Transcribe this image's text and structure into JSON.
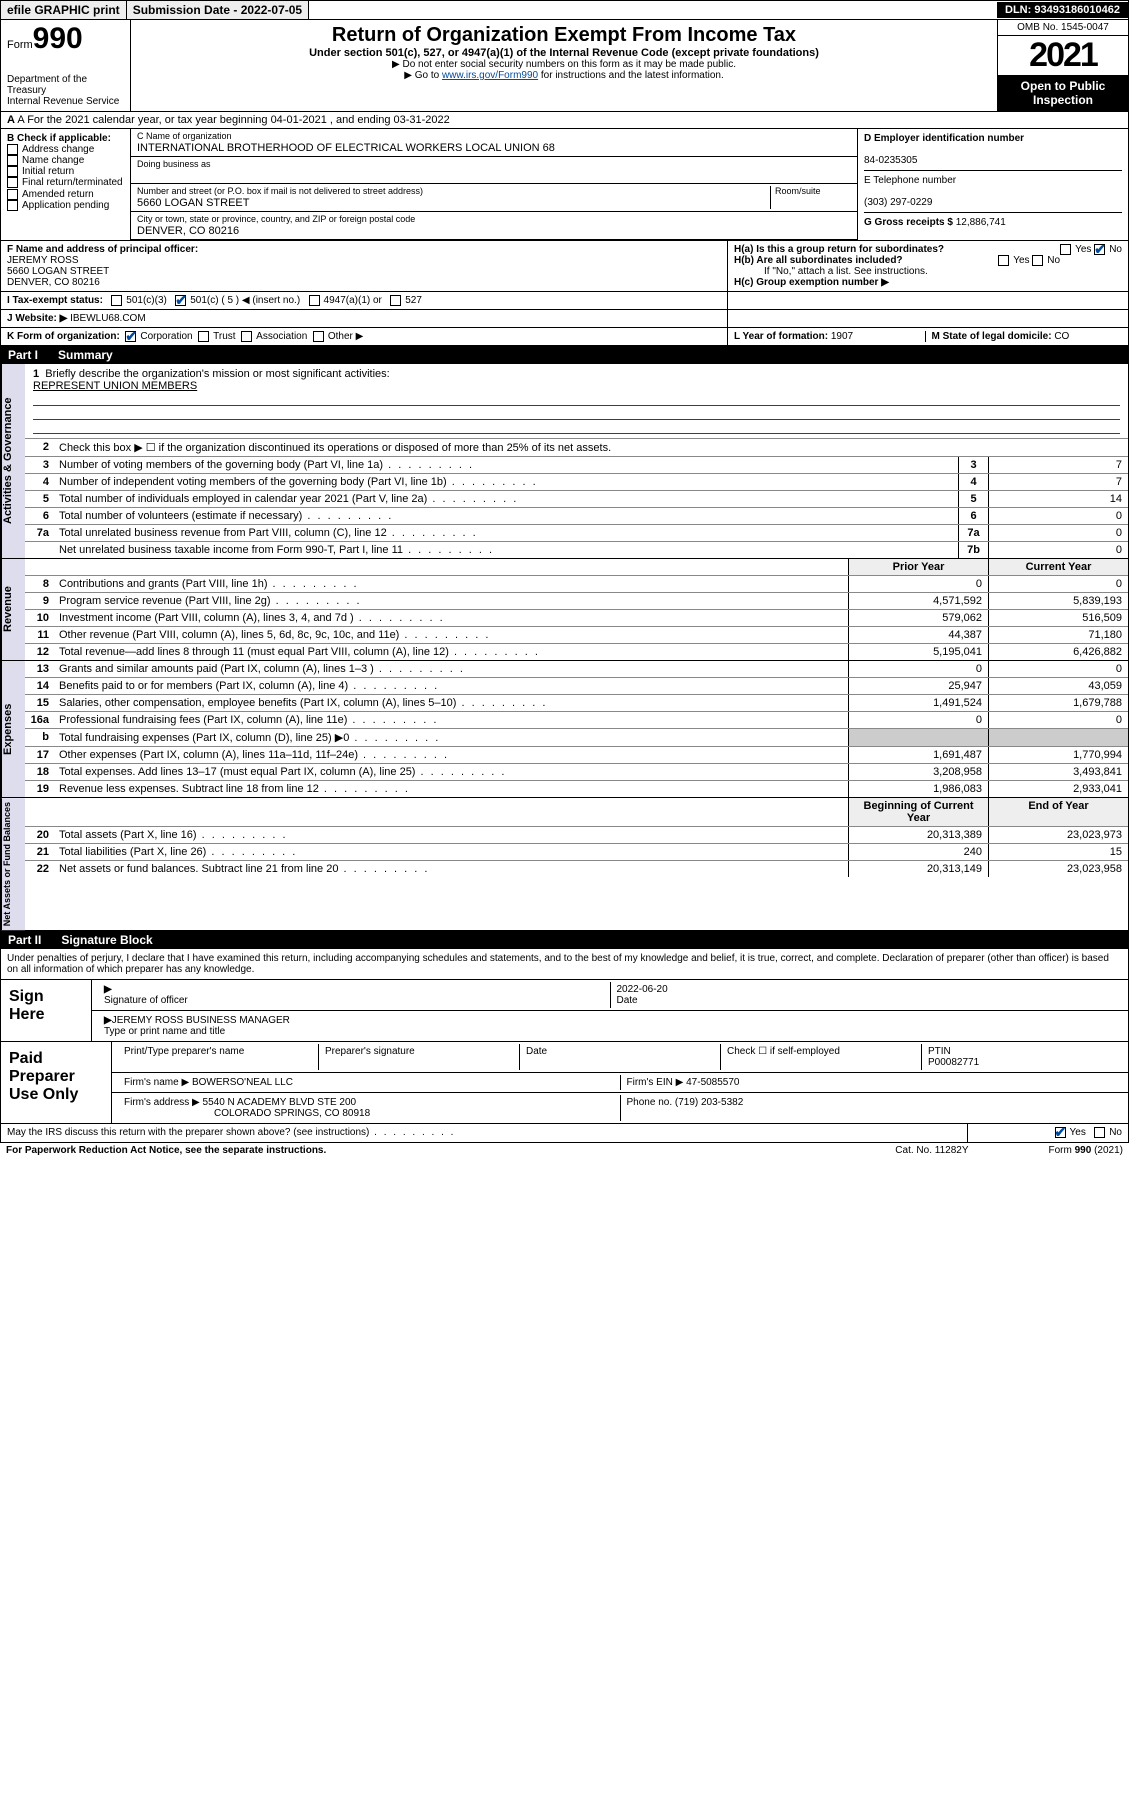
{
  "topbar": {
    "efile": "efile GRAPHIC print",
    "subdate_lbl": "Submission Date - ",
    "subdate": "2022-07-05",
    "dln_lbl": "DLN: ",
    "dln": "93493186010462"
  },
  "header": {
    "form_small": "Form",
    "form_big": "990",
    "dept": "Department of the Treasury\nInternal Revenue Service",
    "title": "Return of Organization Exempt From Income Tax",
    "sub1": "Under section 501(c), 527, or 4947(a)(1) of the Internal Revenue Code (except private foundations)",
    "sub2": "▶ Do not enter social security numbers on this form as it may be made public.",
    "sub3_pre": "▶ Go to ",
    "sub3_link": "www.irs.gov/Form990",
    "sub3_post": " for instructions and the latest information.",
    "omb": "OMB No. 1545-0047",
    "year": "2021",
    "open": "Open to Public Inspection"
  },
  "row_a": "A For the 2021 calendar year, or tax year beginning 04-01-2021   , and ending 03-31-2022",
  "col_b": {
    "hdr": "B Check if applicable:",
    "items": [
      "Address change",
      "Name change",
      "Initial return",
      "Final return/terminated",
      "Amended return",
      "Application pending"
    ]
  },
  "col_c": {
    "name_lbl": "C Name of organization",
    "name": "INTERNATIONAL BROTHERHOOD OF ELECTRICAL WORKERS LOCAL UNION 68",
    "dba_lbl": "Doing business as",
    "dba": "",
    "addr_lbl": "Number and street (or P.O. box if mail is not delivered to street address)",
    "addr": "5660 LOGAN STREET",
    "room_lbl": "Room/suite",
    "city_lbl": "City or town, state or province, country, and ZIP or foreign postal code",
    "city": "DENVER, CO  80216"
  },
  "col_de": {
    "d_lbl": "D Employer identification number",
    "d_val": "84-0235305",
    "e_lbl": "E Telephone number",
    "e_val": "(303) 297-0229",
    "g_lbl": "G Gross receipts $ ",
    "g_val": "12,886,741"
  },
  "row_f": {
    "f_lbl": "F Name and address of principal officer:",
    "f_name": "JEREMY ROSS",
    "f_addr1": "5660 LOGAN STREET",
    "f_addr2": "DENVER, CO  80216",
    "ha": "H(a)  Is this a group return for subordinates?",
    "hb": "H(b)  Are all subordinates included?",
    "hb_note": "If \"No,\" attach a list. See instructions.",
    "hc": "H(c)  Group exemption number ▶",
    "yes": "Yes",
    "no": "No"
  },
  "row_i": {
    "lbl": "I   Tax-exempt status:",
    "o1": "501(c)(3)",
    "o2": "501(c) ( 5 ) ◀ (insert no.)",
    "o3": "4947(a)(1) or",
    "o4": "527"
  },
  "row_j": {
    "lbl": "J   Website: ▶ ",
    "val": "IBEWLU68.COM"
  },
  "row_k": {
    "lbl": "K Form of organization:",
    "o1": "Corporation",
    "o2": "Trust",
    "o3": "Association",
    "o4": "Other ▶",
    "l_lbl": "L Year of formation: ",
    "l_val": "1907",
    "m_lbl": "M State of legal domicile: ",
    "m_val": "CO"
  },
  "part1": {
    "num": "Part I",
    "title": "Summary"
  },
  "gov": {
    "tab": "Activities & Governance",
    "l1": "Briefly describe the organization's mission or most significant activities:",
    "l1v": "REPRESENT UNION MEMBERS",
    "l2": "Check this box ▶ ☐  if the organization discontinued its operations or disposed of more than 25% of its net assets.",
    "rows": [
      {
        "n": "3",
        "t": "Number of voting members of the governing body (Part VI, line 1a)",
        "b": "3",
        "v": "7"
      },
      {
        "n": "4",
        "t": "Number of independent voting members of the governing body (Part VI, line 1b)",
        "b": "4",
        "v": "7"
      },
      {
        "n": "5",
        "t": "Total number of individuals employed in calendar year 2021 (Part V, line 2a)",
        "b": "5",
        "v": "14"
      },
      {
        "n": "6",
        "t": "Total number of volunteers (estimate if necessary)",
        "b": "6",
        "v": "0"
      },
      {
        "n": "7a",
        "t": "Total unrelated business revenue from Part VIII, column (C), line 12",
        "b": "7a",
        "v": "0"
      },
      {
        "n": "",
        "t": "Net unrelated business taxable income from Form 990-T, Part I, line 11",
        "b": "7b",
        "v": "0"
      }
    ]
  },
  "rev": {
    "tab": "Revenue",
    "hdr_prior": "Prior Year",
    "hdr_curr": "Current Year",
    "rows": [
      {
        "n": "8",
        "t": "Contributions and grants (Part VIII, line 1h)",
        "p": "0",
        "c": "0"
      },
      {
        "n": "9",
        "t": "Program service revenue (Part VIII, line 2g)",
        "p": "4,571,592",
        "c": "5,839,193"
      },
      {
        "n": "10",
        "t": "Investment income (Part VIII, column (A), lines 3, 4, and 7d )",
        "p": "579,062",
        "c": "516,509"
      },
      {
        "n": "11",
        "t": "Other revenue (Part VIII, column (A), lines 5, 6d, 8c, 9c, 10c, and 11e)",
        "p": "44,387",
        "c": "71,180"
      },
      {
        "n": "12",
        "t": "Total revenue—add lines 8 through 11 (must equal Part VIII, column (A), line 12)",
        "p": "5,195,041",
        "c": "6,426,882"
      }
    ]
  },
  "exp": {
    "tab": "Expenses",
    "rows": [
      {
        "n": "13",
        "t": "Grants and similar amounts paid (Part IX, column (A), lines 1–3 )",
        "p": "0",
        "c": "0"
      },
      {
        "n": "14",
        "t": "Benefits paid to or for members (Part IX, column (A), line 4)",
        "p": "25,947",
        "c": "43,059"
      },
      {
        "n": "15",
        "t": "Salaries, other compensation, employee benefits (Part IX, column (A), lines 5–10)",
        "p": "1,491,524",
        "c": "1,679,788"
      },
      {
        "n": "16a",
        "t": "Professional fundraising fees (Part IX, column (A), line 11e)",
        "p": "0",
        "c": "0"
      },
      {
        "n": "b",
        "t": "Total fundraising expenses (Part IX, column (D), line 25) ▶0",
        "p": "",
        "c": "",
        "shade": true
      },
      {
        "n": "17",
        "t": "Other expenses (Part IX, column (A), lines 11a–11d, 11f–24e)",
        "p": "1,691,487",
        "c": "1,770,994"
      },
      {
        "n": "18",
        "t": "Total expenses. Add lines 13–17 (must equal Part IX, column (A), line 25)",
        "p": "3,208,958",
        "c": "3,493,841"
      },
      {
        "n": "19",
        "t": "Revenue less expenses. Subtract line 18 from line 12",
        "p": "1,986,083",
        "c": "2,933,041"
      }
    ]
  },
  "net": {
    "tab": "Net Assets or Fund Balances",
    "hdr_beg": "Beginning of Current Year",
    "hdr_end": "End of Year",
    "rows": [
      {
        "n": "20",
        "t": "Total assets (Part X, line 16)",
        "p": "20,313,389",
        "c": "23,023,973"
      },
      {
        "n": "21",
        "t": "Total liabilities (Part X, line 26)",
        "p": "240",
        "c": "15"
      },
      {
        "n": "22",
        "t": "Net assets or fund balances. Subtract line 21 from line 20",
        "p": "20,313,149",
        "c": "23,023,958"
      }
    ]
  },
  "part2": {
    "num": "Part II",
    "title": "Signature Block"
  },
  "decl": "Under penalties of perjury, I declare that I have examined this return, including accompanying schedules and statements, and to the best of my knowledge and belief, it is true, correct, and complete. Declaration of preparer (other than officer) is based on all information of which preparer has any knowledge.",
  "sign": {
    "lbl": "Sign Here",
    "sig_lbl": "Signature of officer",
    "date": "2022-06-20",
    "date_lbl": "Date",
    "name": "JEREMY ROSS  BUSINESS MANAGER",
    "name_lbl": "Type or print name and title"
  },
  "paid": {
    "lbl": "Paid Preparer Use Only",
    "c1": "Print/Type preparer's name",
    "c2": "Preparer's signature",
    "c3": "Date",
    "c4": "Check ☐ if self-employed",
    "c5_lbl": "PTIN",
    "c5": "P00082771",
    "firm_lbl": "Firm's name    ▶ ",
    "firm": "BOWERSO'NEAL LLC",
    "ein_lbl": "Firm's EIN ▶ ",
    "ein": "47-5085570",
    "addr_lbl": "Firm's address ▶ ",
    "addr1": "5540 N ACADEMY BLVD STE 200",
    "addr2": "COLORADO SPRINGS, CO  80918",
    "ph_lbl": "Phone no. ",
    "ph": "(719) 203-5382"
  },
  "discuss": "May the IRS discuss this return with the preparer shown above? (see instructions)",
  "footer": {
    "l": "For Paperwork Reduction Act Notice, see the separate instructions.",
    "m": "Cat. No. 11282Y",
    "r": "Form 990 (2021)"
  }
}
